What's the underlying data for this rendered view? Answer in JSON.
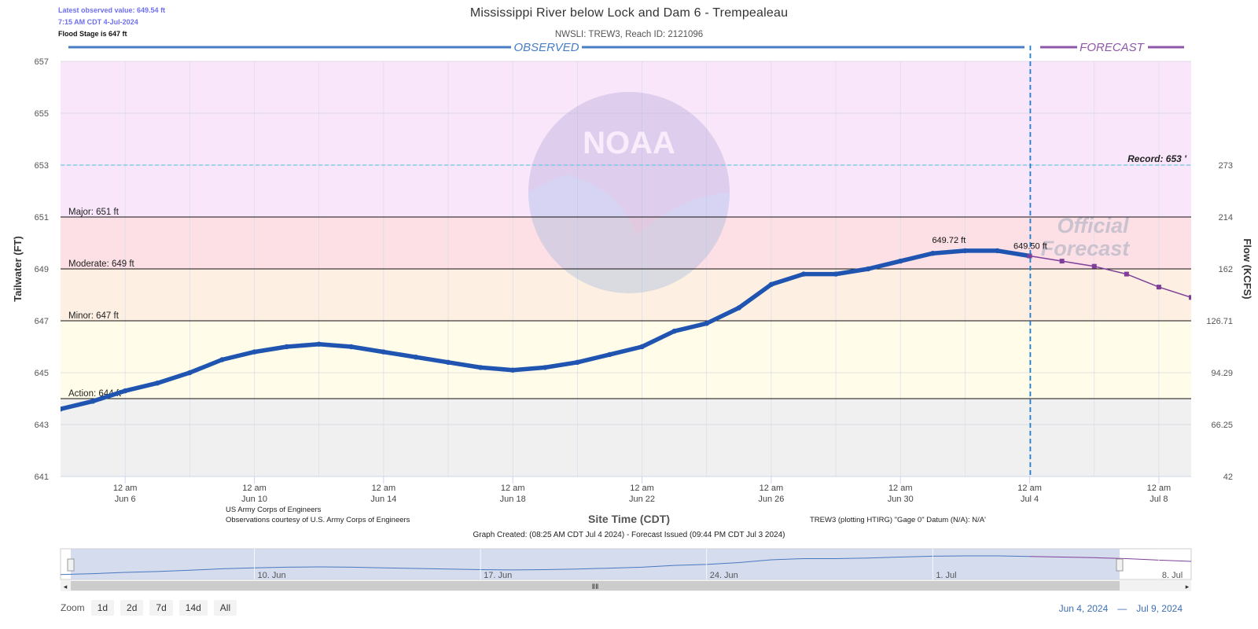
{
  "info": {
    "latest": "Latest observed value: 649.54 ft",
    "time": "7:15 AM CDT 4-Jul-2024",
    "flood_stage": "Flood Stage is 647 ft"
  },
  "title": "Mississippi River below Lock and Dam 6 - Trempealeau",
  "subtitle": "NWSLI: TREW3, Reach ID: 2121096",
  "footer": {
    "agency1": "US Army Corps of Engineers",
    "agency2": "Observations courtesy of U.S. Army Corps of Engineers",
    "datum": "TREW3 (plotting HTIRG) \"Gage 0\" Datum (N/A): N/A'",
    "created": "Graph Created: (08:25 AM CDT Jul 4 2024) - Forecast Issued (09:44 PM CDT Jul 3 2024)"
  },
  "zoom": {
    "label": "Zoom",
    "buttons": [
      "1d",
      "2d",
      "7d",
      "14d",
      "All"
    ]
  },
  "range": {
    "from": "Jun 4, 2024",
    "dash": "—",
    "to": "Jul 9, 2024"
  },
  "colors": {
    "observed": "#1f54b0",
    "forecast": "#7f3f98",
    "record_line": "#6ec6e8",
    "issue_line": "#1f7fd0",
    "major_band": "#f9e6fa",
    "moderate_band": "#fde0e6",
    "minor_band": "#fdf0e2",
    "action_band": "#fffde9",
    "normal_band": "#f0f0f0"
  },
  "chart_data": {
    "type": "line",
    "title": "Mississippi River below Lock and Dam 6 - Trempealeau",
    "subtitle": "NWSLI: TREW3, Reach ID: 2121096",
    "xlabel": "Site Time (CDT)",
    "ylabel": "Tailwater (FT)",
    "y2label": "Flow (KCFS)",
    "xlim": [
      "2024-06-04",
      "2024-07-09"
    ],
    "ylim": [
      641,
      657
    ],
    "yticks": [
      "657",
      "655",
      "653",
      "651",
      "649",
      "647",
      "645",
      "643",
      "641"
    ],
    "y2ticks": [
      {
        "stage": 653,
        "label": "273"
      },
      {
        "stage": 651,
        "label": "214"
      },
      {
        "stage": 649,
        "label": "162"
      },
      {
        "stage": 647,
        "label": "126.71"
      },
      {
        "stage": 645,
        "label": "94.29"
      },
      {
        "stage": 643,
        "label": "66.25"
      },
      {
        "stage": 641,
        "label": "42"
      }
    ],
    "xticks": [
      {
        "date": "2024-06-06",
        "top": "12 am",
        "bottom": "Jun 6"
      },
      {
        "date": "2024-06-10",
        "top": "12 am",
        "bottom": "Jun 10"
      },
      {
        "date": "2024-06-14",
        "top": "12 am",
        "bottom": "Jun 14"
      },
      {
        "date": "2024-06-18",
        "top": "12 am",
        "bottom": "Jun 18"
      },
      {
        "date": "2024-06-22",
        "top": "12 am",
        "bottom": "Jun 22"
      },
      {
        "date": "2024-06-26",
        "top": "12 am",
        "bottom": "Jun 26"
      },
      {
        "date": "2024-06-30",
        "top": "12 am",
        "bottom": "Jun 30"
      },
      {
        "date": "2024-07-04",
        "top": "12 am",
        "bottom": "Jul 4"
      },
      {
        "date": "2024-07-08",
        "top": "12 am",
        "bottom": "Jul 8"
      }
    ],
    "thresholds": [
      {
        "name": "Major",
        "value": 651,
        "label": "Major: 651 ft"
      },
      {
        "name": "Moderate",
        "value": 649,
        "label": "Moderate: 649 ft"
      },
      {
        "name": "Minor",
        "value": 647,
        "label": "Minor: 647 ft"
      },
      {
        "name": "Action",
        "value": 644,
        "label": "Action: 644 ft"
      }
    ],
    "record": {
      "value": 653,
      "label": "Record: 653 '"
    },
    "observed_label": "OBSERVED",
    "forecast_label": "FORECAST",
    "watermark": "Official Forecast",
    "forecast_issue": "2024-07-04T00:30",
    "series": [
      {
        "name": "Observed",
        "x": [
          "2024-06-04",
          "2024-06-05",
          "2024-06-06",
          "2024-06-07",
          "2024-06-08",
          "2024-06-09",
          "2024-06-10",
          "2024-06-11",
          "2024-06-12",
          "2024-06-13",
          "2024-06-14",
          "2024-06-15",
          "2024-06-16",
          "2024-06-17",
          "2024-06-18",
          "2024-06-19",
          "2024-06-20",
          "2024-06-21",
          "2024-06-22",
          "2024-06-23",
          "2024-06-24",
          "2024-06-25",
          "2024-06-26",
          "2024-06-27",
          "2024-06-28",
          "2024-06-29",
          "2024-06-30",
          "2024-07-01",
          "2024-07-02",
          "2024-07-03",
          "2024-07-04"
        ],
        "y": [
          643.6,
          643.9,
          644.3,
          644.6,
          645.0,
          645.5,
          645.8,
          646.0,
          646.1,
          646.0,
          645.8,
          645.6,
          645.4,
          645.2,
          645.1,
          645.2,
          645.4,
          645.7,
          646.0,
          646.6,
          646.9,
          647.5,
          648.4,
          648.8,
          648.8,
          649.0,
          649.3,
          649.6,
          649.7,
          649.7,
          649.5
        ]
      },
      {
        "name": "Forecast",
        "x": [
          "2024-07-04",
          "2024-07-05",
          "2024-07-06",
          "2024-07-07",
          "2024-07-08",
          "2024-07-09"
        ],
        "y": [
          649.5,
          649.3,
          649.1,
          648.8,
          648.3,
          647.9
        ]
      }
    ],
    "annotations": [
      {
        "x": "2024-07-01T12:00",
        "y": 649.72,
        "label": "649.72 ft"
      },
      {
        "x": "2024-07-04T00:30",
        "y": 649.5,
        "label": "649.50 ft"
      }
    ],
    "navigator": {
      "labels": [
        {
          "date": "2024-06-10",
          "label": "10. Jun"
        },
        {
          "date": "2024-06-17",
          "label": "17. Jun"
        },
        {
          "date": "2024-06-24",
          "label": "24. Jun"
        },
        {
          "date": "2024-07-01",
          "label": "1. Jul"
        },
        {
          "date": "2024-07-08",
          "label": "8. Jul"
        }
      ]
    }
  }
}
